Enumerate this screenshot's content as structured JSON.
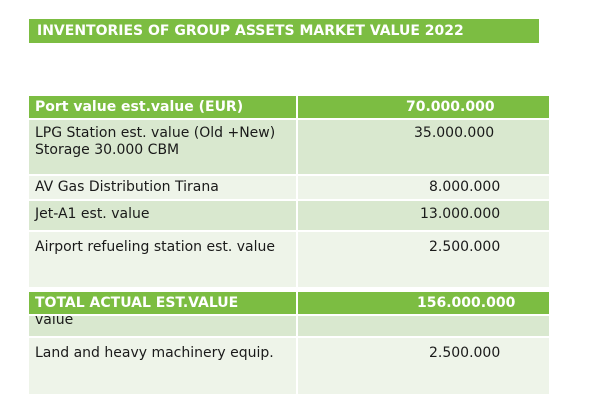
{
  "title": "INVENTORIES OF GROUP ASSETS MARKET VALUE 2022",
  "table": {
    "header": {
      "label": "Port value est.value (EUR)",
      "value": "70.000.000"
    },
    "rows": [
      {
        "label": "LPG Station  est. value (Old +New) Storage 30.000 CBM",
        "value": "35.000.000"
      },
      {
        "label": "AV Gas Distribution Tirana",
        "value": "8.000.000"
      },
      {
        "label": "Jet-A1 est. value",
        "value": "13.000.000"
      },
      {
        "label": "Airport refueling station est. value",
        "value": "2.500.000"
      }
    ],
    "total": {
      "label": "TOTAL ACTUAL EST.VALUE",
      "value": "156.000.000 EUR"
    },
    "overflow_rows": [
      {
        "label": "value",
        "value": ""
      },
      {
        "label": "Land and heavy machinery equip.",
        "value": "2.500.000"
      }
    ]
  }
}
